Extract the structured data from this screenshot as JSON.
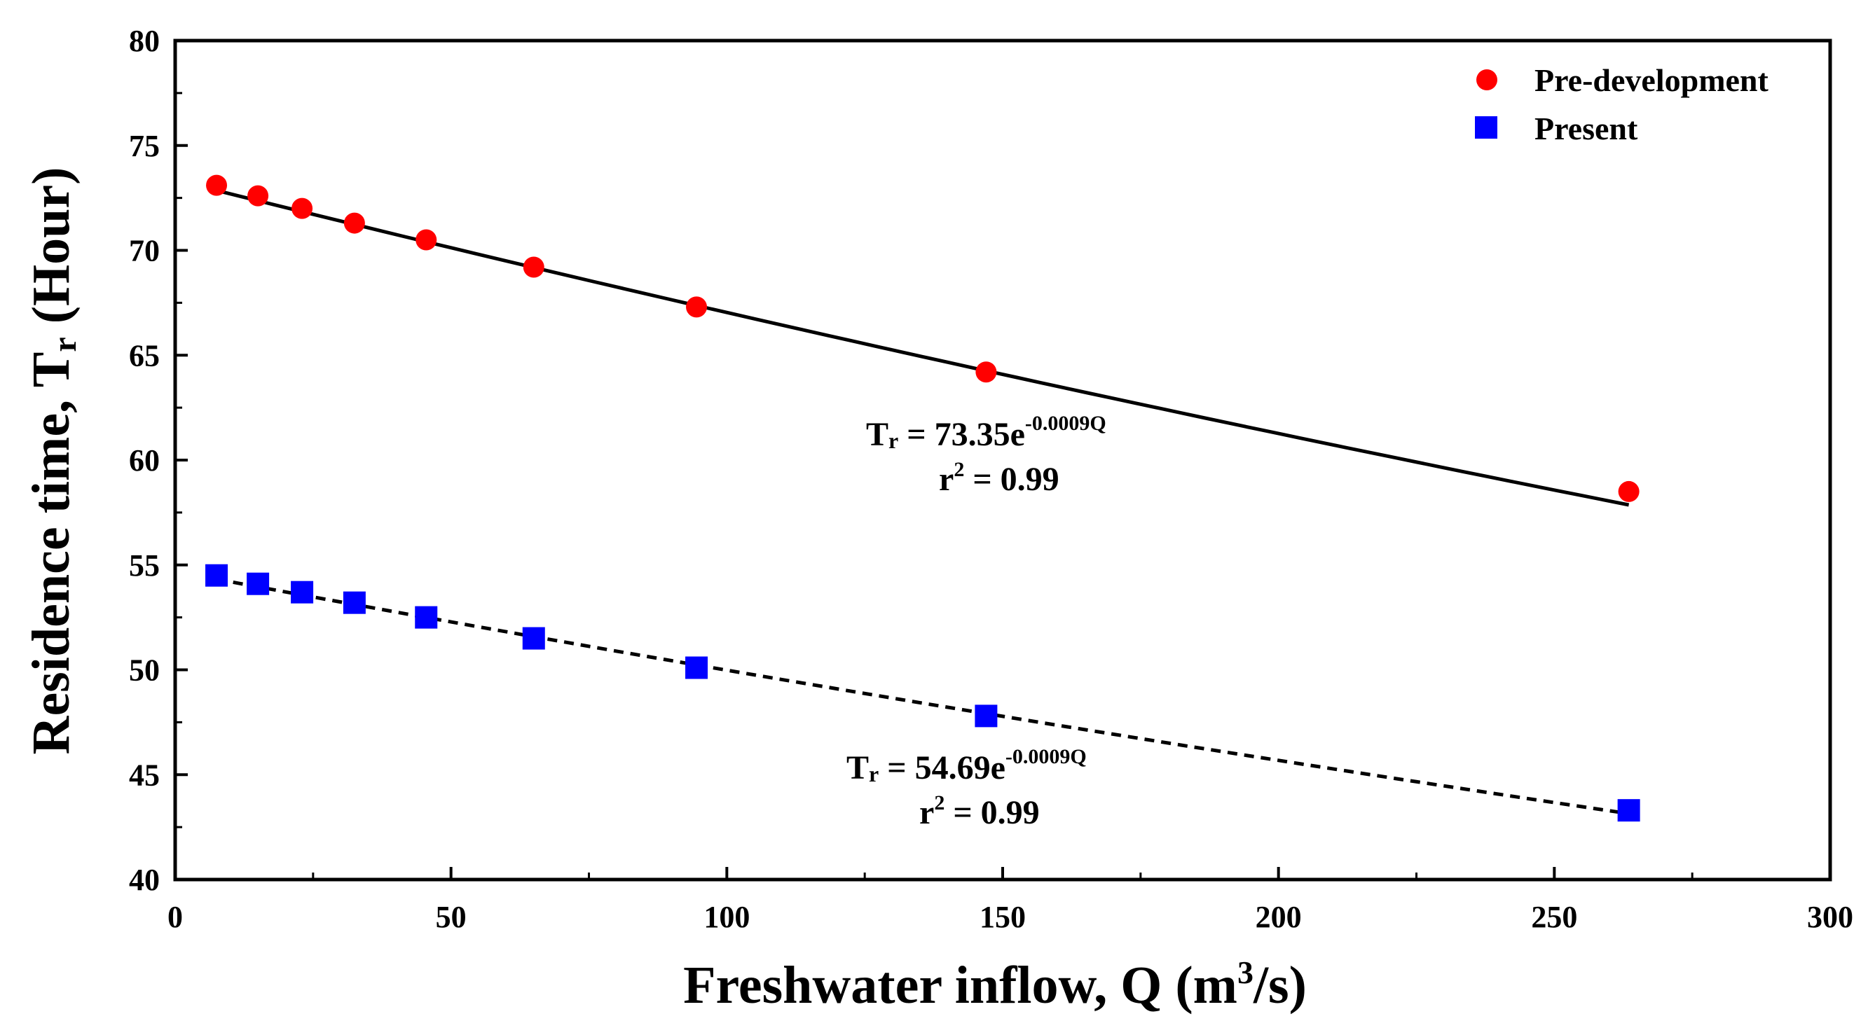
{
  "chart_data": {
    "type": "scatter",
    "title": "",
    "xlabel": "Freshwater inflow, Q (m³/s)",
    "xlabel_parts": {
      "main": "Freshwater inflow, Q (m",
      "sup": "3",
      "tail": "/s)"
    },
    "ylabel": "Residence time, Tr (Hour)",
    "ylabel_parts": {
      "main": "Residence time, T",
      "sub": "r",
      "tail": " (Hour)"
    },
    "xlim": [
      0,
      300
    ],
    "ylim": [
      40,
      80
    ],
    "xticks": [
      0,
      50,
      100,
      150,
      200,
      250,
      300
    ],
    "yticks": [
      40,
      45,
      50,
      55,
      60,
      65,
      70,
      75,
      80
    ],
    "x_minor_step": 25,
    "y_minor_step": 2.5,
    "legend_position": "top-right",
    "series": [
      {
        "name": "Pre-development",
        "marker": "circle",
        "color": "#ff0000",
        "x": [
          7.5,
          15,
          23,
          32.5,
          45.5,
          65,
          94.5,
          147,
          263.5
        ],
        "y": [
          73.1,
          72.6,
          72.0,
          71.3,
          70.5,
          69.2,
          67.3,
          64.2,
          58.5
        ],
        "fit": {
          "style": "solid",
          "a": 73.35,
          "b": -0.0009,
          "x_range": [
            7.5,
            263.5
          ],
          "equation_parts": {
            "lhs_main": "T",
            "lhs_sub": "r",
            "rhs": " = 73.35e",
            "exp": "-0.0009Q"
          },
          "r2_parts": {
            "r": "r",
            "sup": "2",
            "rest": " = 0.99"
          }
        }
      },
      {
        "name": "Present",
        "marker": "square",
        "color": "#0000ff",
        "x": [
          7.5,
          15,
          23,
          32.5,
          45.5,
          65,
          94.5,
          147,
          263.5
        ],
        "y": [
          54.5,
          54.1,
          53.7,
          53.2,
          52.5,
          51.5,
          50.1,
          47.8,
          43.3
        ],
        "fit": {
          "style": "dashed",
          "a": 54.69,
          "b": -0.0009,
          "x_range": [
            7.5,
            263.5
          ],
          "equation_parts": {
            "lhs_main": "T",
            "lhs_sub": "r",
            "rhs": " = 54.69e",
            "exp": "-0.0009Q"
          },
          "r2_parts": {
            "r": "r",
            "sup": "2",
            "rest": " = 0.99"
          }
        }
      }
    ]
  }
}
